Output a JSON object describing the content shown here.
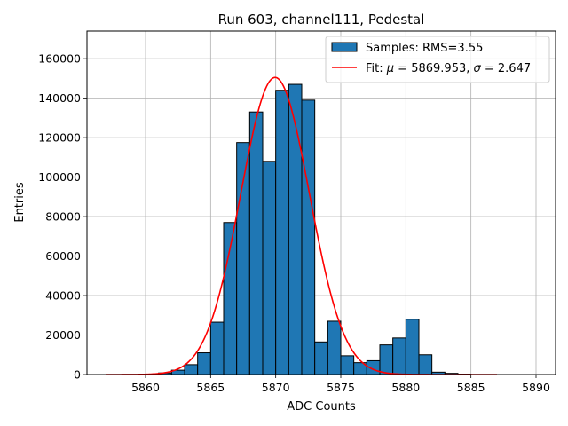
{
  "chart_data": {
    "type": "bar",
    "title": "Run 603, channel111, Pedestal",
    "xlabel": "ADC Counts",
    "ylabel": "Entries",
    "xlim": [
      5855.5,
      5891.5
    ],
    "ylim": [
      0,
      174000
    ],
    "grid": true,
    "legend_position": "top-right",
    "x_ticks": [
      5860,
      5865,
      5870,
      5875,
      5880,
      5885,
      5890
    ],
    "y_ticks": [
      0,
      20000,
      40000,
      60000,
      80000,
      100000,
      120000,
      140000,
      160000
    ],
    "histogram": {
      "name": "Samples: RMS=3.55",
      "color": "#1f77b4",
      "edge_color": "#000000",
      "bin_width": 1,
      "bin_left_edges": [
        5861,
        5862,
        5863,
        5864,
        5865,
        5866,
        5867,
        5868,
        5869,
        5870,
        5871,
        5872,
        5873,
        5874,
        5875,
        5876,
        5877,
        5878,
        5879,
        5880,
        5881,
        5882,
        5883,
        5884
      ],
      "values": [
        800,
        2200,
        5000,
        11000,
        26500,
        77000,
        117500,
        133000,
        108000,
        144000,
        147000,
        139000,
        16500,
        27000,
        9500,
        6000,
        7000,
        15000,
        18500,
        28000,
        10000,
        1200,
        600,
        200
      ]
    },
    "fit": {
      "type": "gaussian",
      "name_prefix": "Fit: ",
      "mu_symbol": "μ",
      "mu_text": " = 5869.953, ",
      "sigma_symbol": "σ",
      "sigma_text": " = 2.647",
      "mu": 5869.953,
      "sigma": 2.647,
      "amplitude": 150500,
      "x_range": [
        5857,
        5887
      ],
      "color": "#ff0000"
    }
  }
}
